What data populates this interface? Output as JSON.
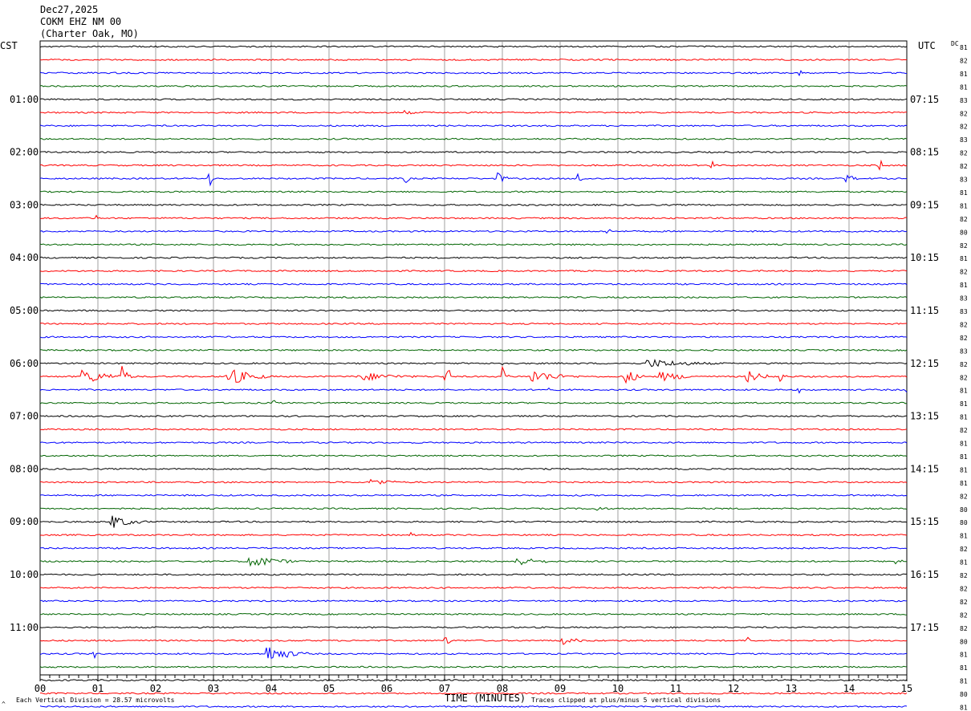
{
  "header": {
    "date": "Dec27,2025",
    "station": "COKM EHZ NM 00",
    "location": "(Charter Oak, MO)"
  },
  "left_timezone": "CST",
  "right_timezone": "UTC",
  "dc_label": "DC",
  "footer": {
    "scale_note": "Each Vertical Division =   28.57 microvolts",
    "xaxis_title": "TIME (MINUTES)",
    "clip_note": "Traces clipped at plus/minus 5 vertical divisions",
    "corner_mark": "^"
  },
  "chart_data": {
    "type": "line",
    "xlabel": "TIME (MINUTES)",
    "xlim": [
      0,
      15
    ],
    "x_ticks": [
      "00",
      "01",
      "02",
      "03",
      "04",
      "05",
      "06",
      "07",
      "08",
      "09",
      "10",
      "11",
      "12",
      "13",
      "14",
      "15"
    ],
    "trace_minutes": 15,
    "trace_colors": [
      "#000000",
      "#ff0000",
      "#0000ff",
      "#006400"
    ],
    "left_hour_labels": [
      "01:00",
      "02:00",
      "03:00",
      "04:00",
      "05:00",
      "06:00",
      "07:00",
      "08:00",
      "09:00",
      "10:00",
      "11:00"
    ],
    "right_hour_labels": [
      "07:15",
      "08:15",
      "09:15",
      "10:15",
      "11:15",
      "12:15",
      "13:15",
      "14:15",
      "15:15",
      "16:15",
      "17:15"
    ],
    "dc_offsets": [
      "81",
      "82",
      "81",
      "81",
      "83",
      "82",
      "82",
      "83",
      "82",
      "82",
      "83",
      "81",
      "81",
      "82",
      "80",
      "82",
      "81",
      "82",
      "81",
      "83",
      "83",
      "82",
      "82",
      "83",
      "82",
      "82",
      "81",
      "81",
      "81",
      "82",
      "81",
      "81",
      "81",
      "81",
      "82",
      "80",
      "80",
      "81",
      "82",
      "81",
      "82",
      "82",
      "82",
      "82",
      "82",
      "80",
      "81",
      "81",
      "81",
      "80",
      "81",
      "81"
    ],
    "events": [
      {
        "trace": 0,
        "minute": 0.0,
        "dur": 15,
        "amp": 0.6
      },
      {
        "trace": 2,
        "minute": 13.1,
        "dur": 0.25,
        "amp": 5
      },
      {
        "trace": 5,
        "minute": 6.3,
        "dur": 0.4,
        "amp": 3
      },
      {
        "trace": 10,
        "minute": 2.9,
        "dur": 0.08,
        "amp": 9
      },
      {
        "trace": 10,
        "minute": 7.9,
        "dur": 0.25,
        "amp": 10
      },
      {
        "trace": 10,
        "minute": 9.3,
        "dur": 0.2,
        "amp": 8
      },
      {
        "trace": 10,
        "minute": 6.3,
        "dur": 0.1,
        "amp": 5
      },
      {
        "trace": 10,
        "minute": 13.9,
        "dur": 0.3,
        "amp": 9
      },
      {
        "trace": 9,
        "minute": 14.5,
        "dur": 0.08,
        "amp": 6
      },
      {
        "trace": 9,
        "minute": 11.6,
        "dur": 0.08,
        "amp": 5
      },
      {
        "trace": 13,
        "minute": 0.9,
        "dur": 0.08,
        "amp": 4
      },
      {
        "trace": 14,
        "minute": 9.8,
        "dur": 0.08,
        "amp": 3
      },
      {
        "trace": 24,
        "minute": 10.5,
        "dur": 1.6,
        "amp": 6
      },
      {
        "trace": 24,
        "minute": 8.0,
        "dur": 0.05,
        "amp": 16
      },
      {
        "trace": 25,
        "minute": 0.7,
        "dur": 1.0,
        "amp": 10
      },
      {
        "trace": 25,
        "minute": 1.4,
        "dur": 0.2,
        "amp": 16
      },
      {
        "trace": 25,
        "minute": 3.2,
        "dur": 0.8,
        "amp": 14
      },
      {
        "trace": 25,
        "minute": 5.5,
        "dur": 1.4,
        "amp": 6
      },
      {
        "trace": 25,
        "minute": 7.0,
        "dur": 0.1,
        "amp": 8
      },
      {
        "trace": 25,
        "minute": 8.0,
        "dur": 0.15,
        "amp": 12
      },
      {
        "trace": 25,
        "minute": 8.5,
        "dur": 0.9,
        "amp": 9
      },
      {
        "trace": 25,
        "minute": 10.1,
        "dur": 0.4,
        "amp": 12
      },
      {
        "trace": 25,
        "minute": 10.7,
        "dur": 0.9,
        "amp": 7
      },
      {
        "trace": 25,
        "minute": 12.2,
        "dur": 0.6,
        "amp": 9
      },
      {
        "trace": 25,
        "minute": 12.8,
        "dur": 0.15,
        "amp": 8
      },
      {
        "trace": 26,
        "minute": 8.8,
        "dur": 0.05,
        "amp": 12
      },
      {
        "trace": 26,
        "minute": 13.1,
        "dur": 0.1,
        "amp": 4
      },
      {
        "trace": 26,
        "minute": 15.0,
        "dur": 0.05,
        "amp": 4
      },
      {
        "trace": 27,
        "minute": 4.0,
        "dur": 0.06,
        "amp": 4
      },
      {
        "trace": 33,
        "minute": 5.7,
        "dur": 0.7,
        "amp": 6
      },
      {
        "trace": 35,
        "minute": 9.6,
        "dur": 0.4,
        "amp": 4
      },
      {
        "trace": 36,
        "minute": 1.2,
        "dur": 0.7,
        "amp": 10
      },
      {
        "trace": 37,
        "minute": 6.4,
        "dur": 0.2,
        "amp": 4
      },
      {
        "trace": 39,
        "minute": 3.6,
        "dur": 1.0,
        "amp": 9
      },
      {
        "trace": 39,
        "minute": 8.2,
        "dur": 0.8,
        "amp": 7
      },
      {
        "trace": 39,
        "minute": 14.8,
        "dur": 0.2,
        "amp": 6
      },
      {
        "trace": 45,
        "minute": 9.0,
        "dur": 0.6,
        "amp": 6
      },
      {
        "trace": 45,
        "minute": 7.0,
        "dur": 0.1,
        "amp": 5
      },
      {
        "trace": 45,
        "minute": 12.2,
        "dur": 0.1,
        "amp": 5
      },
      {
        "trace": 46,
        "minute": 3.9,
        "dur": 0.8,
        "amp": 12
      },
      {
        "trace": 46,
        "minute": 0.9,
        "dur": 0.05,
        "amp": 5
      }
    ]
  }
}
